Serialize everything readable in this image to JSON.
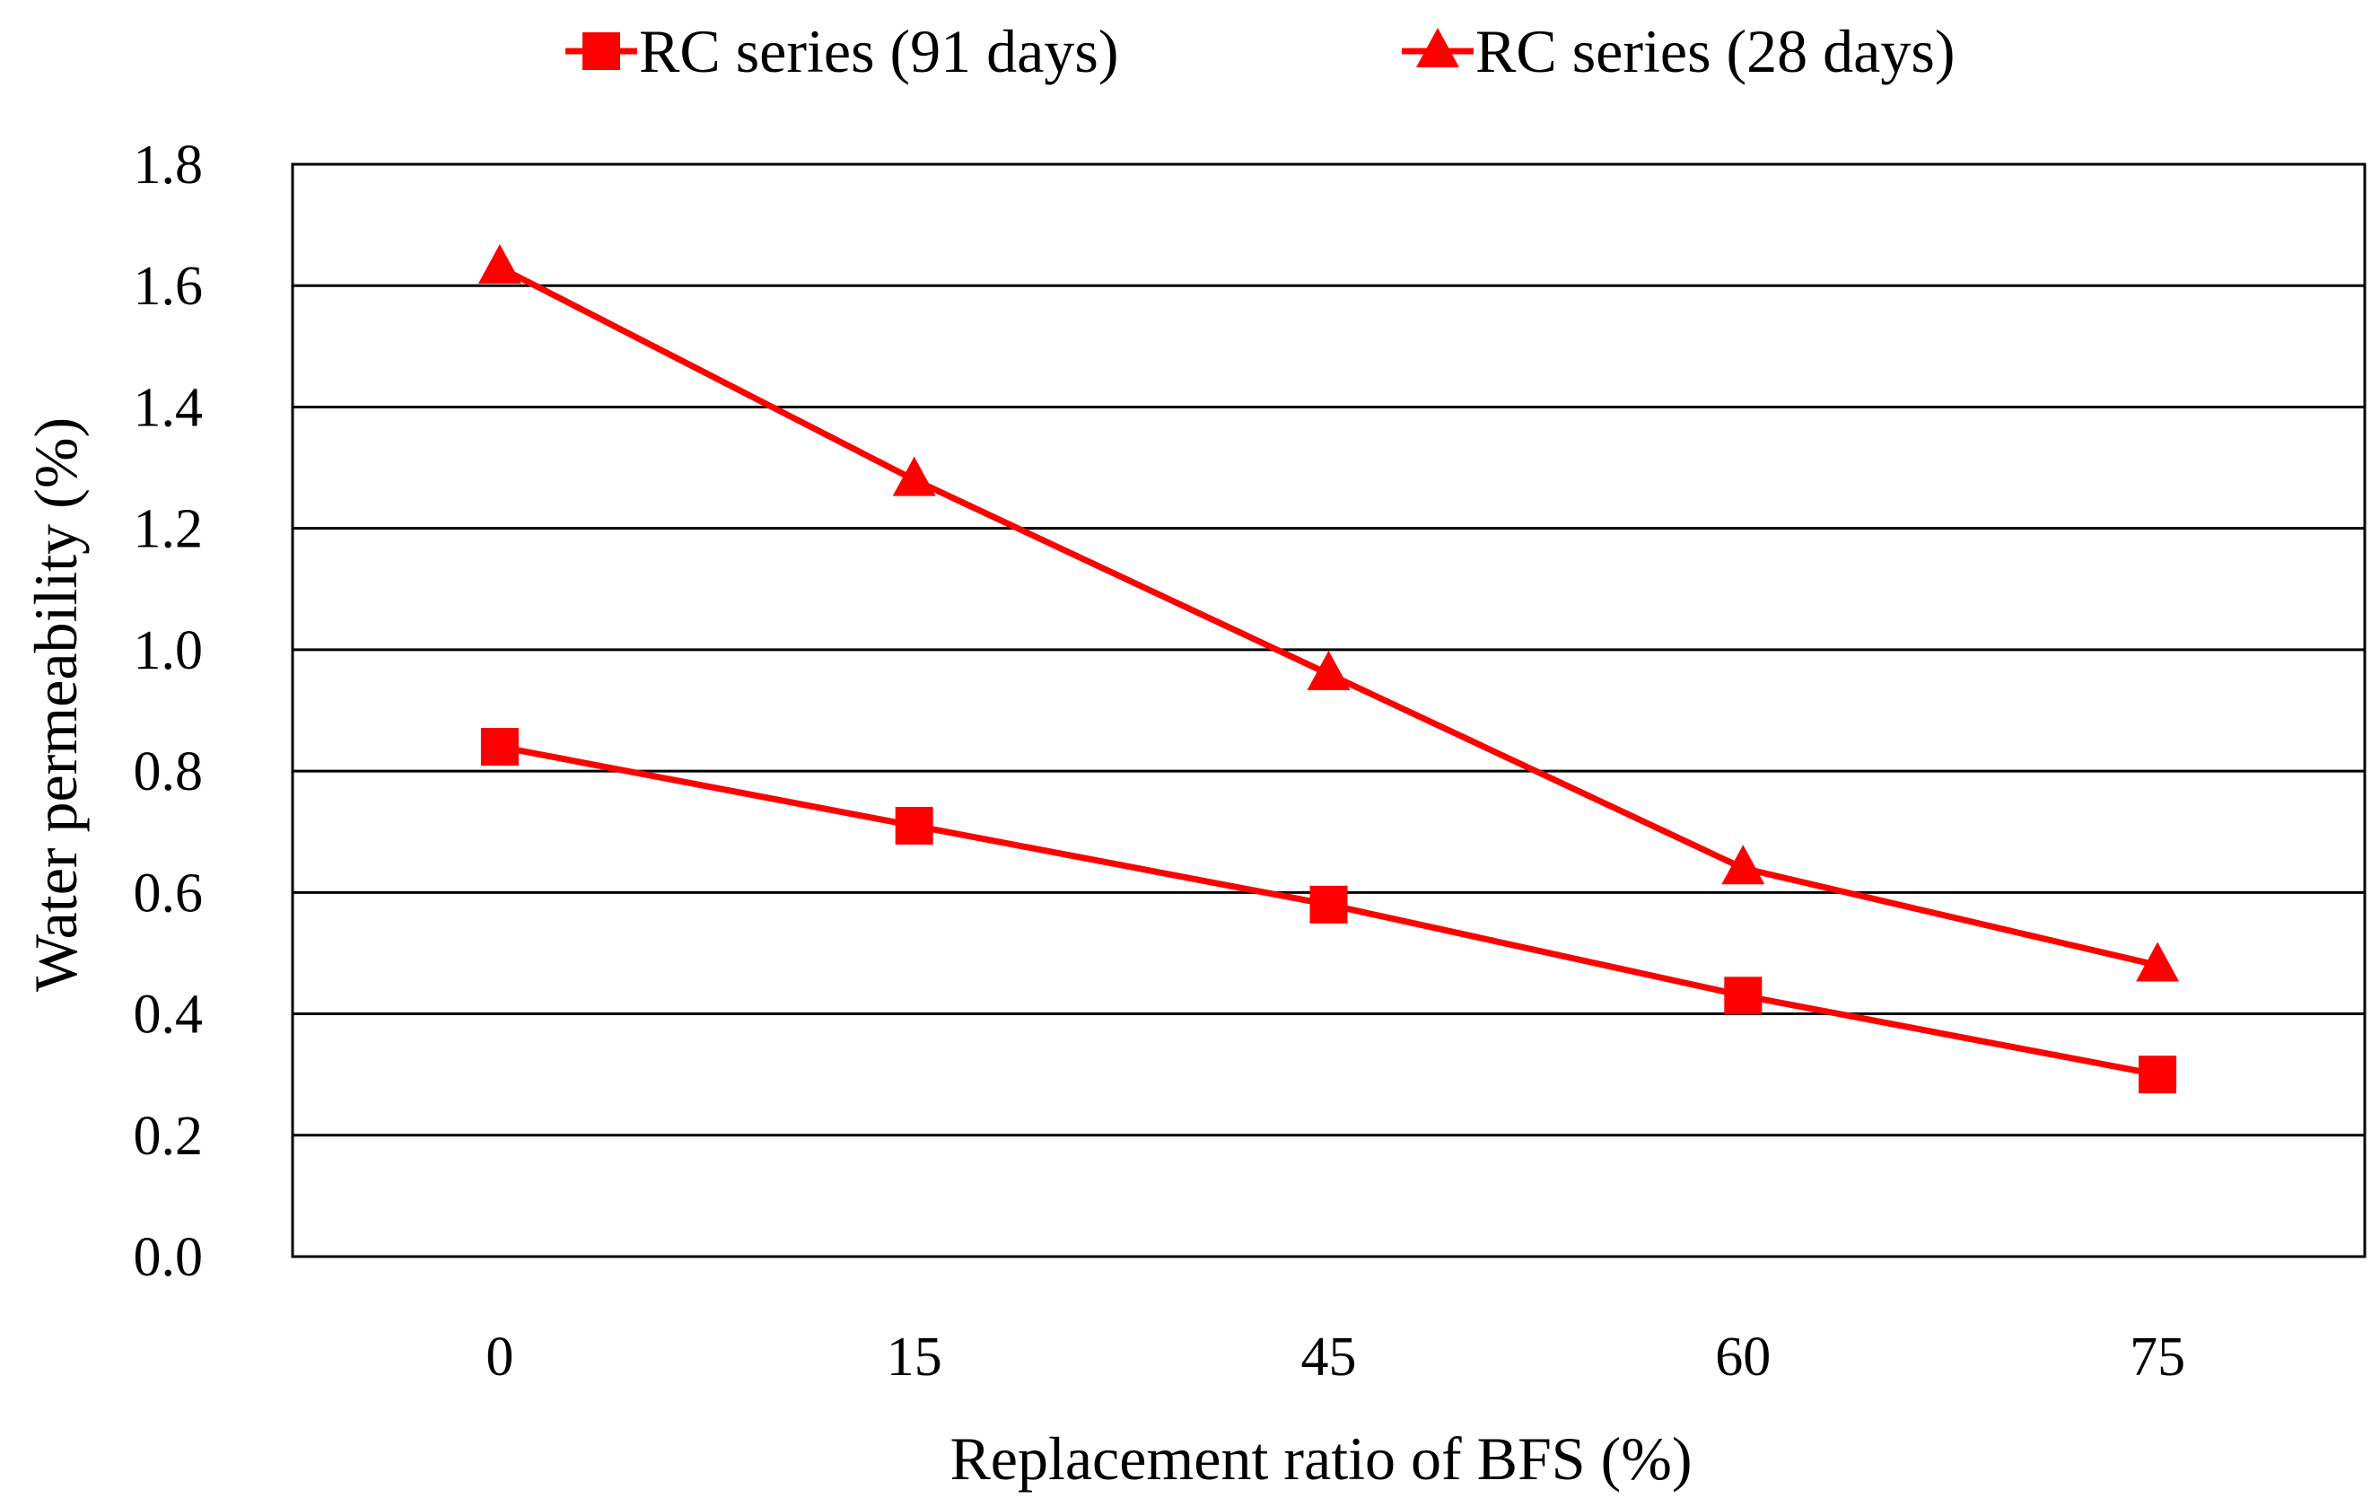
{
  "chart_data": {
    "type": "line",
    "title": "",
    "xlabel": "Replacement ratio of BFS (%)",
    "ylabel": "Water permeability (%)",
    "categories": [
      "0",
      "15",
      "45",
      "60",
      "75"
    ],
    "ylim": [
      0,
      1.8
    ],
    "yticks": [
      "0.0",
      "0.2",
      "0.4",
      "0.6",
      "0.8",
      "1.0",
      "1.2",
      "1.4",
      "1.6",
      "1.8"
    ],
    "grid": "horizontal",
    "legend": "top",
    "series": [
      {
        "name": "RC series (91 days)",
        "marker": "square",
        "color": "#ff0000",
        "values": [
          0.84,
          0.71,
          0.58,
          0.43,
          0.3
        ]
      },
      {
        "name": "RC series (28 days)",
        "marker": "triangle",
        "color": "#ff0000",
        "values": [
          1.63,
          1.28,
          0.96,
          0.64,
          0.48
        ]
      }
    ]
  }
}
